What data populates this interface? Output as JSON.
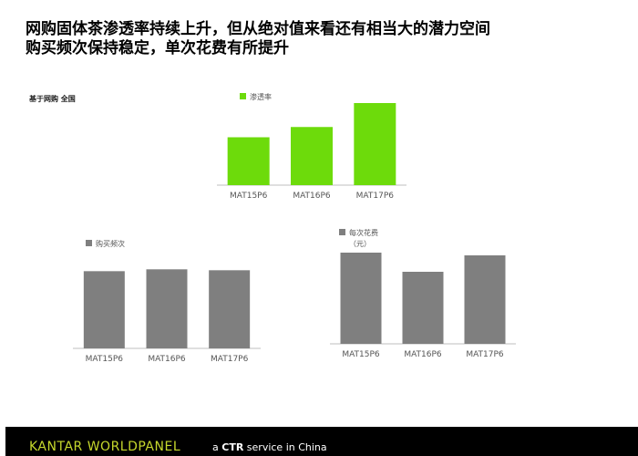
{
  "title": {
    "line1": "网购固体茶渗透率持续上升，但从绝对值来看还有相当大的潜力空间",
    "line2": "购买频次保持稳定，单次花费有所提升"
  },
  "scope_label": "基于网购  全国",
  "colors": {
    "penetration": "#6ddb0b",
    "frequency": "#7f7f7f",
    "spend": "#7f7f7f",
    "brand": "#c6d82c"
  },
  "chart_data": [
    {
      "type": "bar",
      "categories": [
        "MAT15P6",
        "MAT16P6",
        "MAT17P6"
      ],
      "series": [
        {
          "name": "渗透率",
          "values": [
            42,
            51,
            72
          ]
        }
      ],
      "ylim": [
        0,
        80
      ],
      "grid": false,
      "legend": "top-left"
    },
    {
      "type": "bar",
      "categories": [
        "MAT15P6",
        "MAT16P6",
        "MAT17P6"
      ],
      "series": [
        {
          "name": "购买频次",
          "values": [
            83,
            85,
            84
          ]
        }
      ],
      "ylim": [
        0,
        100
      ],
      "grid": false,
      "legend": "top-left"
    },
    {
      "type": "bar",
      "categories": [
        "MAT15P6",
        "MAT16P6",
        "MAT17P6"
      ],
      "series": [
        {
          "name": "每次花费（元）",
          "values": [
            100,
            79,
            97
          ]
        }
      ],
      "ylim": [
        0,
        100
      ],
      "grid": false,
      "legend": "top-left"
    }
  ],
  "footer": {
    "brand": "KANTAR WORLDPANEL",
    "tagline_prefix": "a",
    "tagline_bold": "CTR",
    "tagline_suffix": "service in China"
  }
}
